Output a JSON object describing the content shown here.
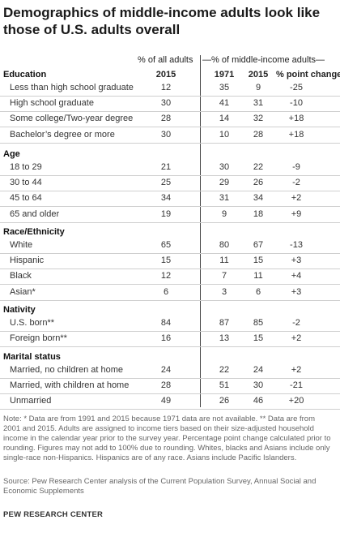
{
  "title": "Demographics of middle-income adults look like those of U.S. adults overall",
  "headers": {
    "all_adults": "% of all adults",
    "middle_income": "—% of middle-income adults—",
    "year_all": "2015",
    "year_1971": "1971",
    "year_2015": "2015",
    "point_change": "% point change"
  },
  "chart_data": {
    "type": "table",
    "columns": [
      "% of all adults 2015",
      "% of middle-income adults 1971",
      "% of middle-income adults 2015",
      "% point change"
    ],
    "sections": [
      {
        "name": "Education",
        "rows": [
          {
            "label": "Less than high school graduate",
            "all_2015": "12",
            "mid_1971": "35",
            "mid_2015": "9",
            "change": "-25"
          },
          {
            "label": "High school graduate",
            "all_2015": "30",
            "mid_1971": "41",
            "mid_2015": "31",
            "change": "-10"
          },
          {
            "label": "Some college/Two-year degree",
            "all_2015": "28",
            "mid_1971": "14",
            "mid_2015": "32",
            "change": "+18"
          },
          {
            "label": "Bachelor’s degree or more",
            "all_2015": "30",
            "mid_1971": "10",
            "mid_2015": "28",
            "change": "+18"
          }
        ]
      },
      {
        "name": "Age",
        "rows": [
          {
            "label": "18 to 29",
            "all_2015": "21",
            "mid_1971": "30",
            "mid_2015": "22",
            "change": "-9"
          },
          {
            "label": "30 to 44",
            "all_2015": "25",
            "mid_1971": "29",
            "mid_2015": "26",
            "change": "-2"
          },
          {
            "label": "45 to 64",
            "all_2015": "34",
            "mid_1971": "31",
            "mid_2015": "34",
            "change": "+2"
          },
          {
            "label": "65 and older",
            "all_2015": "19",
            "mid_1971": "9",
            "mid_2015": "18",
            "change": "+9"
          }
        ]
      },
      {
        "name": "Race/Ethnicity",
        "rows": [
          {
            "label": "White",
            "all_2015": "65",
            "mid_1971": "80",
            "mid_2015": "67",
            "change": "-13"
          },
          {
            "label": "Hispanic",
            "all_2015": "15",
            "mid_1971": "11",
            "mid_2015": "15",
            "change": "+3"
          },
          {
            "label": "Black",
            "all_2015": "12",
            "mid_1971": "7",
            "mid_2015": "11",
            "change": "+4"
          },
          {
            "label": "Asian*",
            "all_2015": "6",
            "mid_1971": "3",
            "mid_2015": "6",
            "change": "+3"
          }
        ]
      },
      {
        "name": "Nativity",
        "rows": [
          {
            "label": "U.S. born**",
            "all_2015": "84",
            "mid_1971": "87",
            "mid_2015": "85",
            "change": "-2"
          },
          {
            "label": "Foreign born**",
            "all_2015": "16",
            "mid_1971": "13",
            "mid_2015": "15",
            "change": "+2"
          }
        ]
      },
      {
        "name": "Marital status",
        "rows": [
          {
            "label": "Married, no children at home",
            "all_2015": "24",
            "mid_1971": "22",
            "mid_2015": "24",
            "change": "+2"
          },
          {
            "label": "Married, with children at home",
            "all_2015": "28",
            "mid_1971": "51",
            "mid_2015": "30",
            "change": "-21"
          },
          {
            "label": "Unmarried",
            "all_2015": "49",
            "mid_1971": "26",
            "mid_2015": "46",
            "change": "+20"
          }
        ]
      }
    ]
  },
  "note": "Note: * Data are from 1991 and 2015 because 1971 data are not available. ** Data are from 2001 and 2015. Adults are assigned to income tiers based on their size-adjusted household income in the calendar year prior to the survey year. Percentage point change calculated prior to rounding. Figures may not add to 100% due to rounding. Whites, blacks and Asians include only single-race non-Hispanics. Hispanics are of any race. Asians include Pacific Islanders.",
  "source": "Source: Pew Research Center analysis of the Current Population Survey, Annual Social and Economic Supplements",
  "footer": "PEW RESEARCH CENTER",
  "colors": {
    "divider": "#444444",
    "rule": "#cfcfcf",
    "note": "#666666"
  }
}
